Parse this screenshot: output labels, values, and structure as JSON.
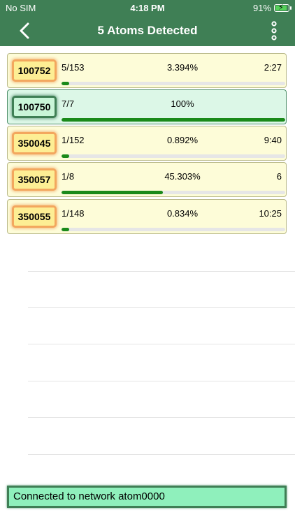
{
  "status_bar": {
    "carrier": "No SIM",
    "time": "4:18 PM",
    "battery": "91%"
  },
  "header": {
    "title": "5 Atoms Detected",
    "back_icon": "chevron-left-icon",
    "menu_icon": "more-vertical-icon"
  },
  "atoms": [
    {
      "id": "100752",
      "count": "5/153",
      "percent": "3.394%",
      "time": "2:27",
      "progress": 0.03394,
      "complete": false
    },
    {
      "id": "100750",
      "count": "7/7",
      "percent": "100%",
      "time": "",
      "progress": 1.0,
      "complete": true
    },
    {
      "id": "350045",
      "count": "1/152",
      "percent": "0.892%",
      "time": "9:40",
      "progress": 0.00892,
      "complete": false
    },
    {
      "id": "350057",
      "count": "1/8",
      "percent": "45.303%",
      "time": "6",
      "progress": 0.45303,
      "complete": false
    },
    {
      "id": "350055",
      "count": "1/148",
      "percent": "0.834%",
      "time": "10:25",
      "progress": 0.00834,
      "complete": false
    }
  ],
  "footer": {
    "status": "Connected to network atom0000"
  },
  "colors": {
    "header_bg": "#3f7f55",
    "progress_fill": "#1a8a1a",
    "card_bg": "#fdfcd8",
    "card_complete_bg": "#dcf7e7",
    "status_bg": "#8ff0bc"
  }
}
